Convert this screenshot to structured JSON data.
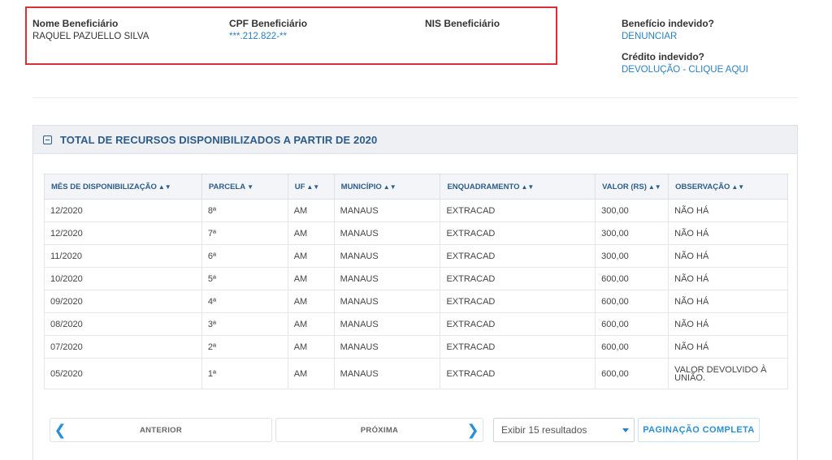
{
  "beneficiary": {
    "name_label": "Nome Beneficiário",
    "name_value": "RAQUEL PAZUELLO SILVA",
    "cpf_label": "CPF Beneficiário",
    "cpf_value": "***.212.822-**",
    "nis_label": "NIS Beneficiário",
    "nis_value": "",
    "highlight_color": "#d9303b"
  },
  "side": {
    "improper_benefit_label": "Benefício indevido?",
    "improper_benefit_link": "DENUNCIAR",
    "improper_credit_label": "Crédito indevido?",
    "improper_credit_link": "DEVOLUÇÃO - CLIQUE AQUI"
  },
  "panel": {
    "title": "TOTAL DE RECURSOS DISPONIBILIZADOS A PARTIR DE 2020",
    "collapse_icon": "minus-square-icon"
  },
  "table": {
    "columns": [
      {
        "label": "MÊS DE DISPONIBILIZAÇÃO",
        "sort": "sort-both-icon"
      },
      {
        "label": "PARCELA",
        "sort": "sort-desc-icon"
      },
      {
        "label": "UF",
        "sort": "sort-both-icon"
      },
      {
        "label": "MUNICÍPIO",
        "sort": "sort-both-icon"
      },
      {
        "label": "ENQUADRAMENTO",
        "sort": "sort-both-icon"
      },
      {
        "label": "VALOR (Rs)",
        "sort": "sort-both-icon"
      },
      {
        "label": "OBSERVAÇÃO",
        "sort": "sort-both-icon"
      }
    ],
    "rows": [
      [
        "12/2020",
        "8ª",
        "AM",
        "MANAUS",
        "EXTRACAD",
        "300,00",
        "NÃO HÁ"
      ],
      [
        "12/2020",
        "7ª",
        "AM",
        "MANAUS",
        "EXTRACAD",
        "300,00",
        "NÃO HÁ"
      ],
      [
        "11/2020",
        "6ª",
        "AM",
        "MANAUS",
        "EXTRACAD",
        "300,00",
        "NÃO HÁ"
      ],
      [
        "10/2020",
        "5ª",
        "AM",
        "MANAUS",
        "EXTRACAD",
        "600,00",
        "NÃO HÁ"
      ],
      [
        "09/2020",
        "4ª",
        "AM",
        "MANAUS",
        "EXTRACAD",
        "600,00",
        "NÃO HÁ"
      ],
      [
        "08/2020",
        "3ª",
        "AM",
        "MANAUS",
        "EXTRACAD",
        "600,00",
        "NÃO HÁ"
      ],
      [
        "07/2020",
        "2ª",
        "AM",
        "MANAUS",
        "EXTRACAD",
        "600,00",
        "NÃO HÁ"
      ],
      [
        "05/2020",
        "1ª",
        "AM",
        "MANAUS",
        "EXTRACAD",
        "600,00",
        "VALOR DEVOLVIDO À UNIÃO."
      ]
    ]
  },
  "pagination": {
    "prev_label": "ANTERIOR",
    "next_label": "PRÓXIMA",
    "results_selected": "Exibir 15 resultados",
    "full_label": "PAGINAÇÃO COMPLETA"
  }
}
